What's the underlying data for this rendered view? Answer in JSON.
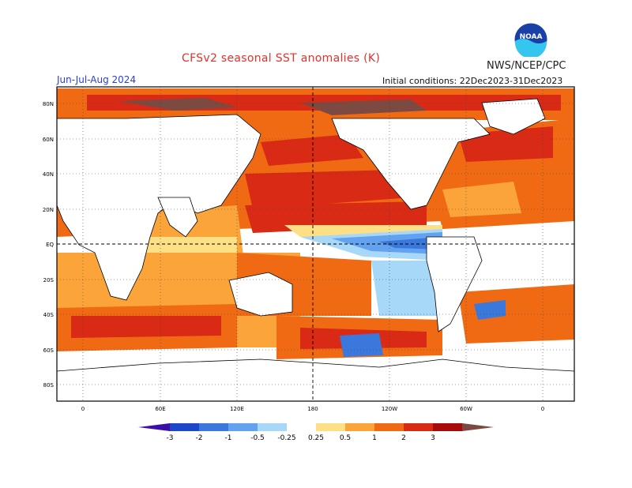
{
  "header": {
    "title": "CFSv2 seasonal SST anomalies (K)",
    "season": "Jun-Jul-Aug 2024",
    "org": "NWS/NCEP/CPC",
    "initial_conditions": "Initial conditions: 22Dec2023-31Dec2023",
    "logo_text": "NOAA"
  },
  "map": {
    "lat_labels": [
      "80N",
      "60N",
      "40N",
      "20N",
      "EQ",
      "20S",
      "40S",
      "60S",
      "80S"
    ],
    "lon_labels": [
      "0",
      "60E",
      "120E",
      "180",
      "120W",
      "60W",
      "0"
    ]
  },
  "legend": {
    "ticks": [
      "-3",
      "-2",
      "-1",
      "-0.5",
      "-0.25",
      "0.25",
      "0.5",
      "1",
      "2",
      "3"
    ],
    "colors": [
      "#3b10a8",
      "#1e46c8",
      "#3b78dc",
      "#62a2ef",
      "#a8d8f8",
      "#ffffff",
      "#fde086",
      "#fba43a",
      "#f06a14",
      "#d82a14",
      "#a80c0a",
      "#7c4a40"
    ]
  }
}
